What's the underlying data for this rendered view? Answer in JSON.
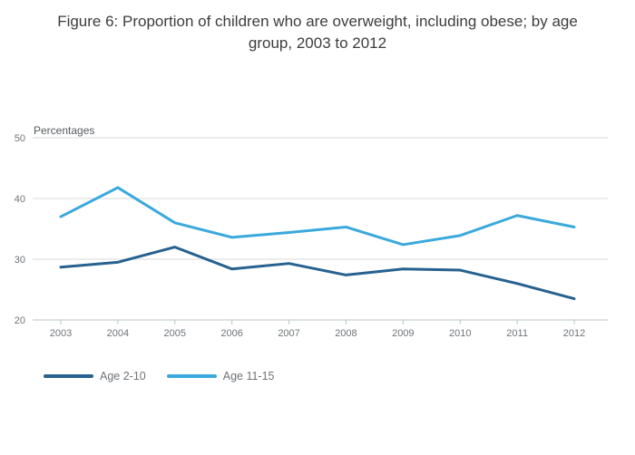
{
  "title": "Figure 6: Proportion of children who are overweight, including obese; by age group, 2003 to 2012",
  "chart_data": {
    "type": "line",
    "title": "Figure 6: Proportion of children who are overweight, including obese; by age group, 2003 to 2012",
    "xlabel": "",
    "ylabel": "Percentages",
    "categories": [
      "2003",
      "2004",
      "2005",
      "2006",
      "2007",
      "2008",
      "2009",
      "2010",
      "2011",
      "2012"
    ],
    "series": [
      {
        "name": "Age 2-10",
        "color": "#26618f",
        "values": [
          28.7,
          29.5,
          32.0,
          28.4,
          29.3,
          27.4,
          28.4,
          28.2,
          26.0,
          23.5
        ]
      },
      {
        "name": "Age 11-15",
        "color": "#3aa9dc",
        "values": [
          37.0,
          41.8,
          36.0,
          33.6,
          34.4,
          35.3,
          32.4,
          33.9,
          37.2,
          35.3
        ]
      }
    ],
    "ylim": [
      20,
      50
    ],
    "yticks": [
      50,
      40,
      30,
      20
    ],
    "grid": true,
    "legend_position": "bottom-left",
    "colors": {
      "grid_line": "#dadada",
      "axis_line": "#b9c4cc",
      "title_text": "#3d3d3d",
      "tick_text": "#6f7478"
    }
  }
}
